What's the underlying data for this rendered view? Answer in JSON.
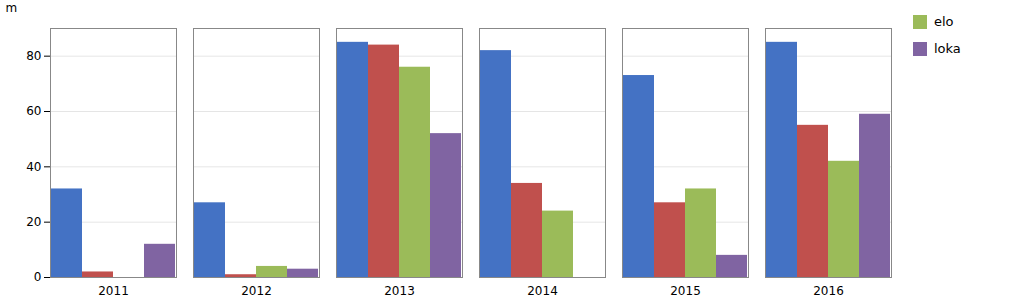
{
  "chart_data": {
    "type": "bar",
    "categories": [
      "2011",
      "2012",
      "2013",
      "2014",
      "2015",
      "2016"
    ],
    "series": [
      {
        "color": "#4472C4",
        "values": [
          32,
          27,
          85,
          82,
          73,
          85
        ]
      },
      {
        "color": "#C0504D",
        "values": [
          2,
          1,
          84,
          34,
          27,
          55
        ]
      },
      {
        "name": "elo",
        "color": "#9BBB59",
        "values": [
          0,
          4,
          76,
          24,
          32,
          42
        ]
      },
      {
        "name": "loka",
        "color": "#8064A2",
        "values": [
          12,
          3,
          52,
          0,
          8,
          59
        ]
      }
    ],
    "ylabel": "m",
    "ylim": [
      0,
      90
    ],
    "yticks": [
      0,
      20,
      40,
      60,
      80
    ],
    "grid": true,
    "legend": "right"
  }
}
